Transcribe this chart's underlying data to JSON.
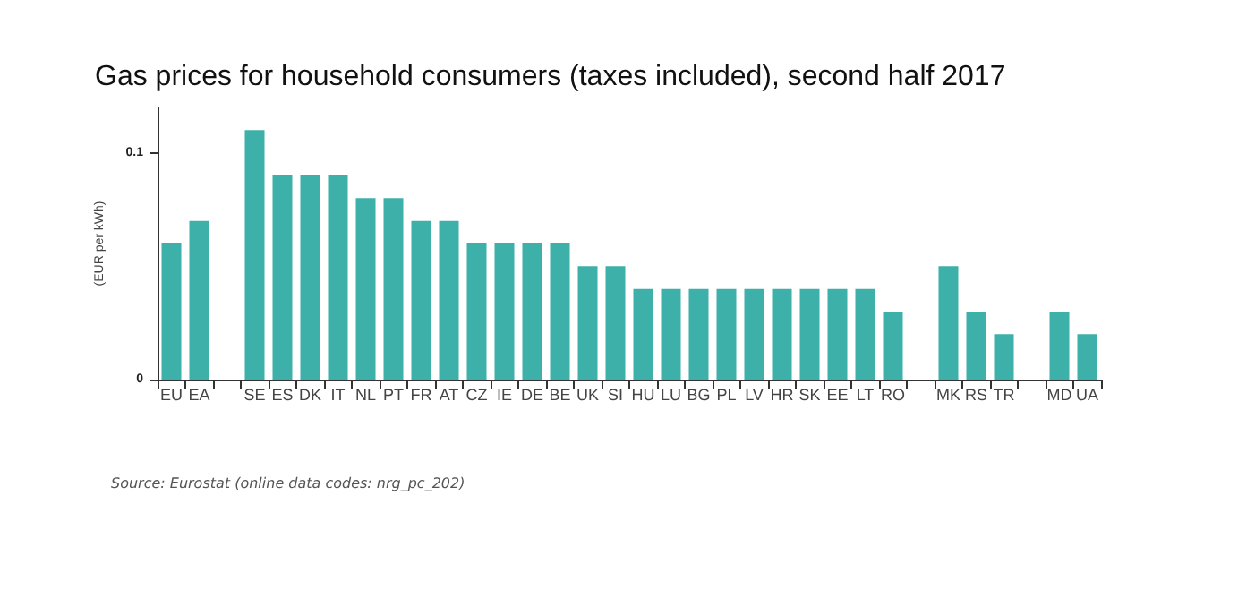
{
  "chart_data": {
    "type": "bar",
    "title": "Gas prices for household consumers (taxes included), second half 2017",
    "ylabel": "(EUR per kWh)",
    "annotations": [
      "Source: Eurostat (online data codes: nrg_pc_202)"
    ],
    "categories": [
      "EU",
      "EA",
      null,
      "SE",
      "ES",
      "DK",
      "IT",
      "NL",
      "PT",
      "FR",
      "AT",
      "CZ",
      "IE",
      "DE",
      "BE",
      "UK",
      "SI",
      "HU",
      "LU",
      "BG",
      "PL",
      "LV",
      "HR",
      "SK",
      "EE",
      "LT",
      "RO",
      null,
      "MK",
      "RS",
      "TR",
      null,
      "MD",
      "UA"
    ],
    "values": [
      0.06,
      0.07,
      null,
      0.11,
      0.09,
      0.09,
      0.09,
      0.08,
      0.08,
      0.07,
      0.07,
      0.06,
      0.06,
      0.06,
      0.06,
      0.05,
      0.05,
      0.04,
      0.04,
      0.04,
      0.04,
      0.04,
      0.04,
      0.04,
      0.04,
      0.04,
      0.03,
      null,
      0.05,
      0.03,
      0.02,
      null,
      0.03,
      0.02
    ],
    "color": "#3db0a9",
    "ylim": [
      0,
      0.12
    ],
    "yticks": [
      0,
      0.1
    ]
  }
}
